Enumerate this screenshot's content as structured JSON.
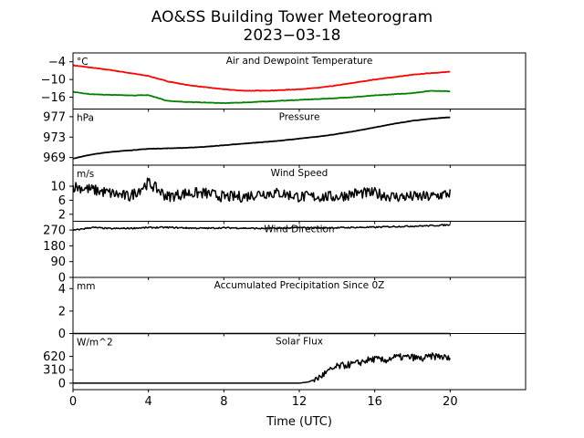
{
  "figure": {
    "title_line1": "AO&SS Building Tower Meteorogram",
    "title_line2": "2023-03-18",
    "xlabel": "Time (UTC)",
    "x_ticks": [
      0,
      4,
      8,
      12,
      16,
      20
    ],
    "xlim": [
      0,
      24
    ]
  },
  "colors": {
    "air_temp": "#ff0000",
    "dewpoint": "#008000",
    "trace": "#000000"
  },
  "chart_data": [
    {
      "type": "line",
      "title": "Air and Dewpoint Temperature",
      "unit": "°C",
      "ylim": [
        -20,
        -1
      ],
      "y_ticks": [
        -4,
        -10,
        -16
      ],
      "x": [
        0,
        1,
        2,
        3,
        4,
        5,
        6,
        7,
        8,
        9,
        10,
        11,
        12,
        13,
        14,
        15,
        16,
        17,
        18,
        19,
        20
      ],
      "series": [
        {
          "values": [
            -5.2,
            -6.0,
            -6.8,
            -7.8,
            -8.8,
            -10.6,
            -11.8,
            -12.6,
            -13.3,
            -13.8,
            -13.8,
            -13.6,
            -13.3,
            -12.8,
            -12.0,
            -11.0,
            -10.0,
            -9.2,
            -8.4,
            -7.8,
            -7.4
          ]
        },
        {
          "values": [
            -14.2,
            -15.0,
            -15.2,
            -15.4,
            -15.3,
            -17.2,
            -17.6,
            -17.8,
            -18.0,
            -17.8,
            -17.5,
            -17.2,
            -16.9,
            -16.6,
            -16.3,
            -15.9,
            -15.4,
            -15.0,
            -14.6,
            -13.8,
            -14.0
          ]
        }
      ]
    },
    {
      "type": "line",
      "title": "Pressure",
      "unit": "hPa",
      "ylim": [
        967.5,
        978.5
      ],
      "y_ticks": [
        969,
        973,
        977
      ],
      "x": [
        0,
        1,
        2,
        3,
        4,
        5,
        6,
        7,
        8,
        9,
        10,
        11,
        12,
        13,
        14,
        15,
        16,
        17,
        18,
        19,
        20
      ],
      "series": [
        {
          "values": [
            968.8,
            969.6,
            970.1,
            970.4,
            970.7,
            970.8,
            970.9,
            971.1,
            971.4,
            971.7,
            972.0,
            972.3,
            972.7,
            973.1,
            973.6,
            974.2,
            974.9,
            975.6,
            976.2,
            976.6,
            976.9
          ]
        }
      ]
    },
    {
      "type": "line",
      "title": "Wind Speed",
      "unit": "m/s",
      "ylim": [
        0,
        16
      ],
      "y_ticks": [
        2,
        6,
        10
      ],
      "x": [
        0,
        1,
        2,
        3,
        4,
        5,
        6,
        7,
        8,
        9,
        10,
        11,
        12,
        13,
        14,
        15,
        16,
        17,
        18,
        19,
        20
      ],
      "series": [
        {
          "values": [
            10,
            9,
            8,
            7,
            11,
            7,
            8,
            8,
            7,
            7,
            8,
            8,
            7,
            7,
            7,
            8,
            8,
            7,
            7,
            7,
            8
          ]
        }
      ]
    },
    {
      "type": "line",
      "title": "Wind Direction",
      "unit": "",
      "ylim": [
        0,
        320
      ],
      "y_ticks": [
        0,
        90,
        180,
        270
      ],
      "x": [
        0,
        1,
        2,
        3,
        4,
        5,
        6,
        7,
        8,
        9,
        10,
        11,
        12,
        13,
        14,
        15,
        16,
        17,
        18,
        19,
        20
      ],
      "series": [
        {
          "values": [
            268,
            285,
            278,
            280,
            284,
            285,
            282,
            280,
            283,
            281,
            279,
            280,
            284,
            282,
            283,
            285,
            286,
            290,
            292,
            295,
            300
          ]
        }
      ]
    },
    {
      "type": "line",
      "title": "Accumulated Precipitation Since 0Z",
      "unit": "mm",
      "ylim": [
        0,
        5
      ],
      "y_ticks": [
        0,
        2,
        4
      ],
      "x": [
        0,
        20
      ],
      "series": [
        {
          "values": [
            0,
            0
          ]
        }
      ]
    },
    {
      "type": "line",
      "title": "Solar Flux",
      "unit": "W/m^2",
      "ylim": [
        -150,
        1150
      ],
      "y_ticks": [
        0,
        310,
        620
      ],
      "x": [
        0,
        12,
        12.5,
        13,
        13.5,
        14,
        14.5,
        15,
        15.5,
        16,
        16.5,
        17,
        17.5,
        18,
        18.5,
        19,
        19.5,
        20
      ],
      "series": [
        {
          "values": [
            0,
            0,
            30,
            120,
            260,
            380,
            420,
            450,
            520,
            560,
            520,
            600,
            600,
            600,
            560,
            620,
            620,
            560
          ]
        }
      ]
    }
  ]
}
